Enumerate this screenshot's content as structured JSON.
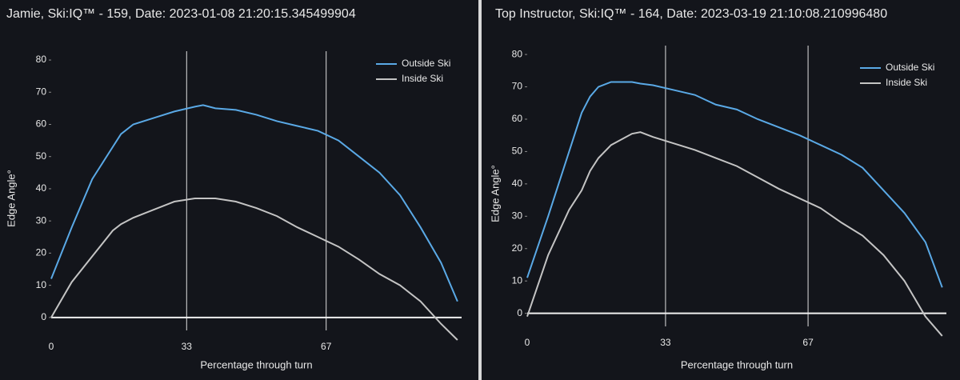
{
  "chart_data": [
    {
      "type": "line",
      "title": "Jamie, Ski:IQ™ - 159, Date: 2023-01-08 21:20:15.345499904",
      "x_label": "Percentage through turn",
      "y_label": "Edge Angle°",
      "x": [
        0,
        5,
        10,
        15,
        17,
        20,
        25,
        30,
        35,
        37,
        40,
        45,
        50,
        55,
        60,
        65,
        70,
        75,
        80,
        85,
        90,
        95,
        99
      ],
      "series": [
        {
          "name": "Outside Ski",
          "color": "#5aa9e6",
          "values": [
            12,
            28,
            43,
            53,
            57,
            60,
            62,
            64,
            65.5,
            66,
            65,
            64.5,
            63,
            61,
            59.5,
            58,
            55,
            50,
            45,
            38,
            28,
            17,
            5
          ]
        },
        {
          "name": "Inside Ski",
          "color": "#c4c4c4",
          "values": [
            0,
            11,
            19,
            27,
            29,
            31,
            33.5,
            36,
            37,
            37,
            37,
            36,
            34,
            31.5,
            28,
            25,
            22,
            18,
            13.5,
            10,
            5,
            -2,
            -7
          ]
        }
      ],
      "xlim": [
        0,
        100
      ],
      "xticks": [
        0,
        33,
        67
      ],
      "ylim": [
        -8,
        82
      ],
      "yticks": [
        0,
        10,
        20,
        30,
        40,
        50,
        60,
        70,
        80
      ],
      "zeroline": true,
      "legend": "top-right"
    },
    {
      "type": "line",
      "title": "Top Instructor, Ski:IQ™ - 164, Date: 2023-03-19 21:10:08.210996480",
      "x_label": "Percentage through turn",
      "y_label": "Edge Angle°",
      "x": [
        0,
        5,
        10,
        13,
        15,
        17,
        20,
        25,
        27,
        30,
        35,
        40,
        45,
        50,
        55,
        60,
        65,
        70,
        75,
        80,
        85,
        90,
        95,
        99
      ],
      "series": [
        {
          "name": "Outside Ski",
          "color": "#5aa9e6",
          "values": [
            11,
            30,
            50,
            62,
            67,
            70,
            71.5,
            71.5,
            71,
            70.5,
            69,
            67.5,
            64.5,
            63,
            60,
            57.5,
            55,
            52,
            49,
            45,
            38,
            31,
            22,
            8
          ]
        },
        {
          "name": "Inside Ski",
          "color": "#c4c4c4",
          "values": [
            -1,
            18,
            32,
            38,
            44,
            48,
            52,
            55.5,
            56,
            54.5,
            52.5,
            50.5,
            48,
            45.5,
            42,
            38.5,
            35.5,
            32.5,
            28,
            24,
            18,
            10,
            -1,
            -7
          ]
        }
      ],
      "xlim": [
        0,
        100
      ],
      "xticks": [
        0,
        33,
        67
      ],
      "ylim": [
        -8,
        82
      ],
      "yticks": [
        0,
        10,
        20,
        30,
        40,
        50,
        60,
        70,
        80
      ],
      "zeroline": true,
      "legend": "top-right"
    }
  ]
}
